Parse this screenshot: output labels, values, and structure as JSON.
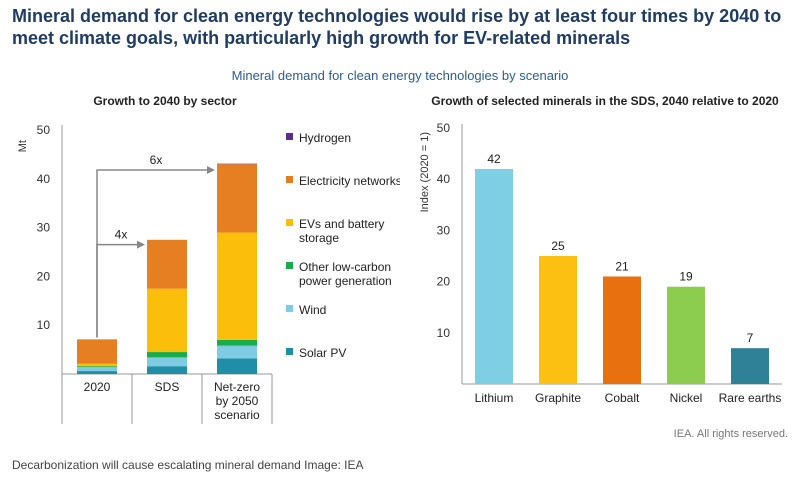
{
  "headline": "Mineral demand for clean energy technologies would rise by at least four times by 2040 to meet climate goals, with particularly high growth for EV-related minerals",
  "subtitle": "Mineral demand for clean energy technologies by scenario",
  "credit": "IEA. All rights reserved.",
  "caption": "Decarbonization will cause escalating mineral demand Image: IEA",
  "colors": {
    "hydrogen": "#5b2d8e",
    "electricity": "#e67e22",
    "evs": "#fbbf0b",
    "lowcarbon": "#1aab4b",
    "wind": "#7ecbe3",
    "solar": "#1f8fa7",
    "arrow": "#888888",
    "axis": "#999999",
    "grid": "#e3e3e3"
  },
  "chart_data": [
    {
      "type": "bar",
      "stacked": true,
      "title": "Growth to 2040 by sector",
      "ylabel": "Mt",
      "ylim": [
        0,
        50
      ],
      "yticks": [
        10,
        20,
        30,
        40,
        50
      ],
      "categories": [
        "2020",
        "SDS",
        "Net-zero by 2050 scenario"
      ],
      "category_lines": [
        [
          "2020"
        ],
        [
          "SDS"
        ],
        [
          "Net-zero",
          "by 2050",
          "scenario"
        ]
      ],
      "series": [
        {
          "name": "Solar PV",
          "key": "solar",
          "values": [
            0.6,
            1.6,
            3.2
          ]
        },
        {
          "name": "Wind",
          "key": "wind",
          "values": [
            0.8,
            1.8,
            2.6
          ]
        },
        {
          "name": "Other low-carbon power generation",
          "key": "lowcarbon",
          "values": [
            0.2,
            1.1,
            1.2
          ]
        },
        {
          "name": "EVs and battery storage",
          "key": "evs",
          "values": [
            0.5,
            13.0,
            22.0
          ]
        },
        {
          "name": "Electricity networks",
          "key": "electricity",
          "values": [
            5.0,
            10.0,
            14.0
          ]
        },
        {
          "name": "Hydrogen",
          "key": "hydrogen",
          "values": [
            0.0,
            0.0,
            0.1
          ]
        }
      ],
      "legend": [
        {
          "key": "hydrogen",
          "lines": [
            "Hydrogen"
          ]
        },
        {
          "key": "electricity",
          "lines": [
            "Electricity networks"
          ]
        },
        {
          "key": "evs",
          "lines": [
            "EVs and battery",
            "storage"
          ]
        },
        {
          "key": "lowcarbon",
          "lines": [
            "Other low-carbon",
            "power generation"
          ]
        },
        {
          "key": "wind",
          "lines": [
            "Wind"
          ]
        },
        {
          "key": "solar",
          "lines": [
            "Solar PV"
          ]
        }
      ],
      "annotations": [
        {
          "label": "4x",
          "from": 0,
          "to": 1,
          "level": 26.5
        },
        {
          "label": "6x",
          "from": 0,
          "to": 2,
          "level": 41.8
        }
      ]
    },
    {
      "type": "bar",
      "title": "Growth of selected minerals in the SDS, 2040 relative to 2020",
      "ylabel": "Index (2020 = 1)",
      "ylim": [
        0,
        50
      ],
      "yticks": [
        10,
        20,
        30,
        40,
        50
      ],
      "categories": [
        "Lithium",
        "Graphite",
        "Cobalt",
        "Nickel",
        "Rare earths"
      ],
      "values": [
        42,
        25,
        21,
        19,
        7
      ],
      "labels": [
        "42",
        "25",
        "21",
        "19",
        "7"
      ],
      "colors": [
        "#7ecfe3",
        "#fbc012",
        "#e8700e",
        "#8ccc4f",
        "#2f8197"
      ]
    }
  ]
}
